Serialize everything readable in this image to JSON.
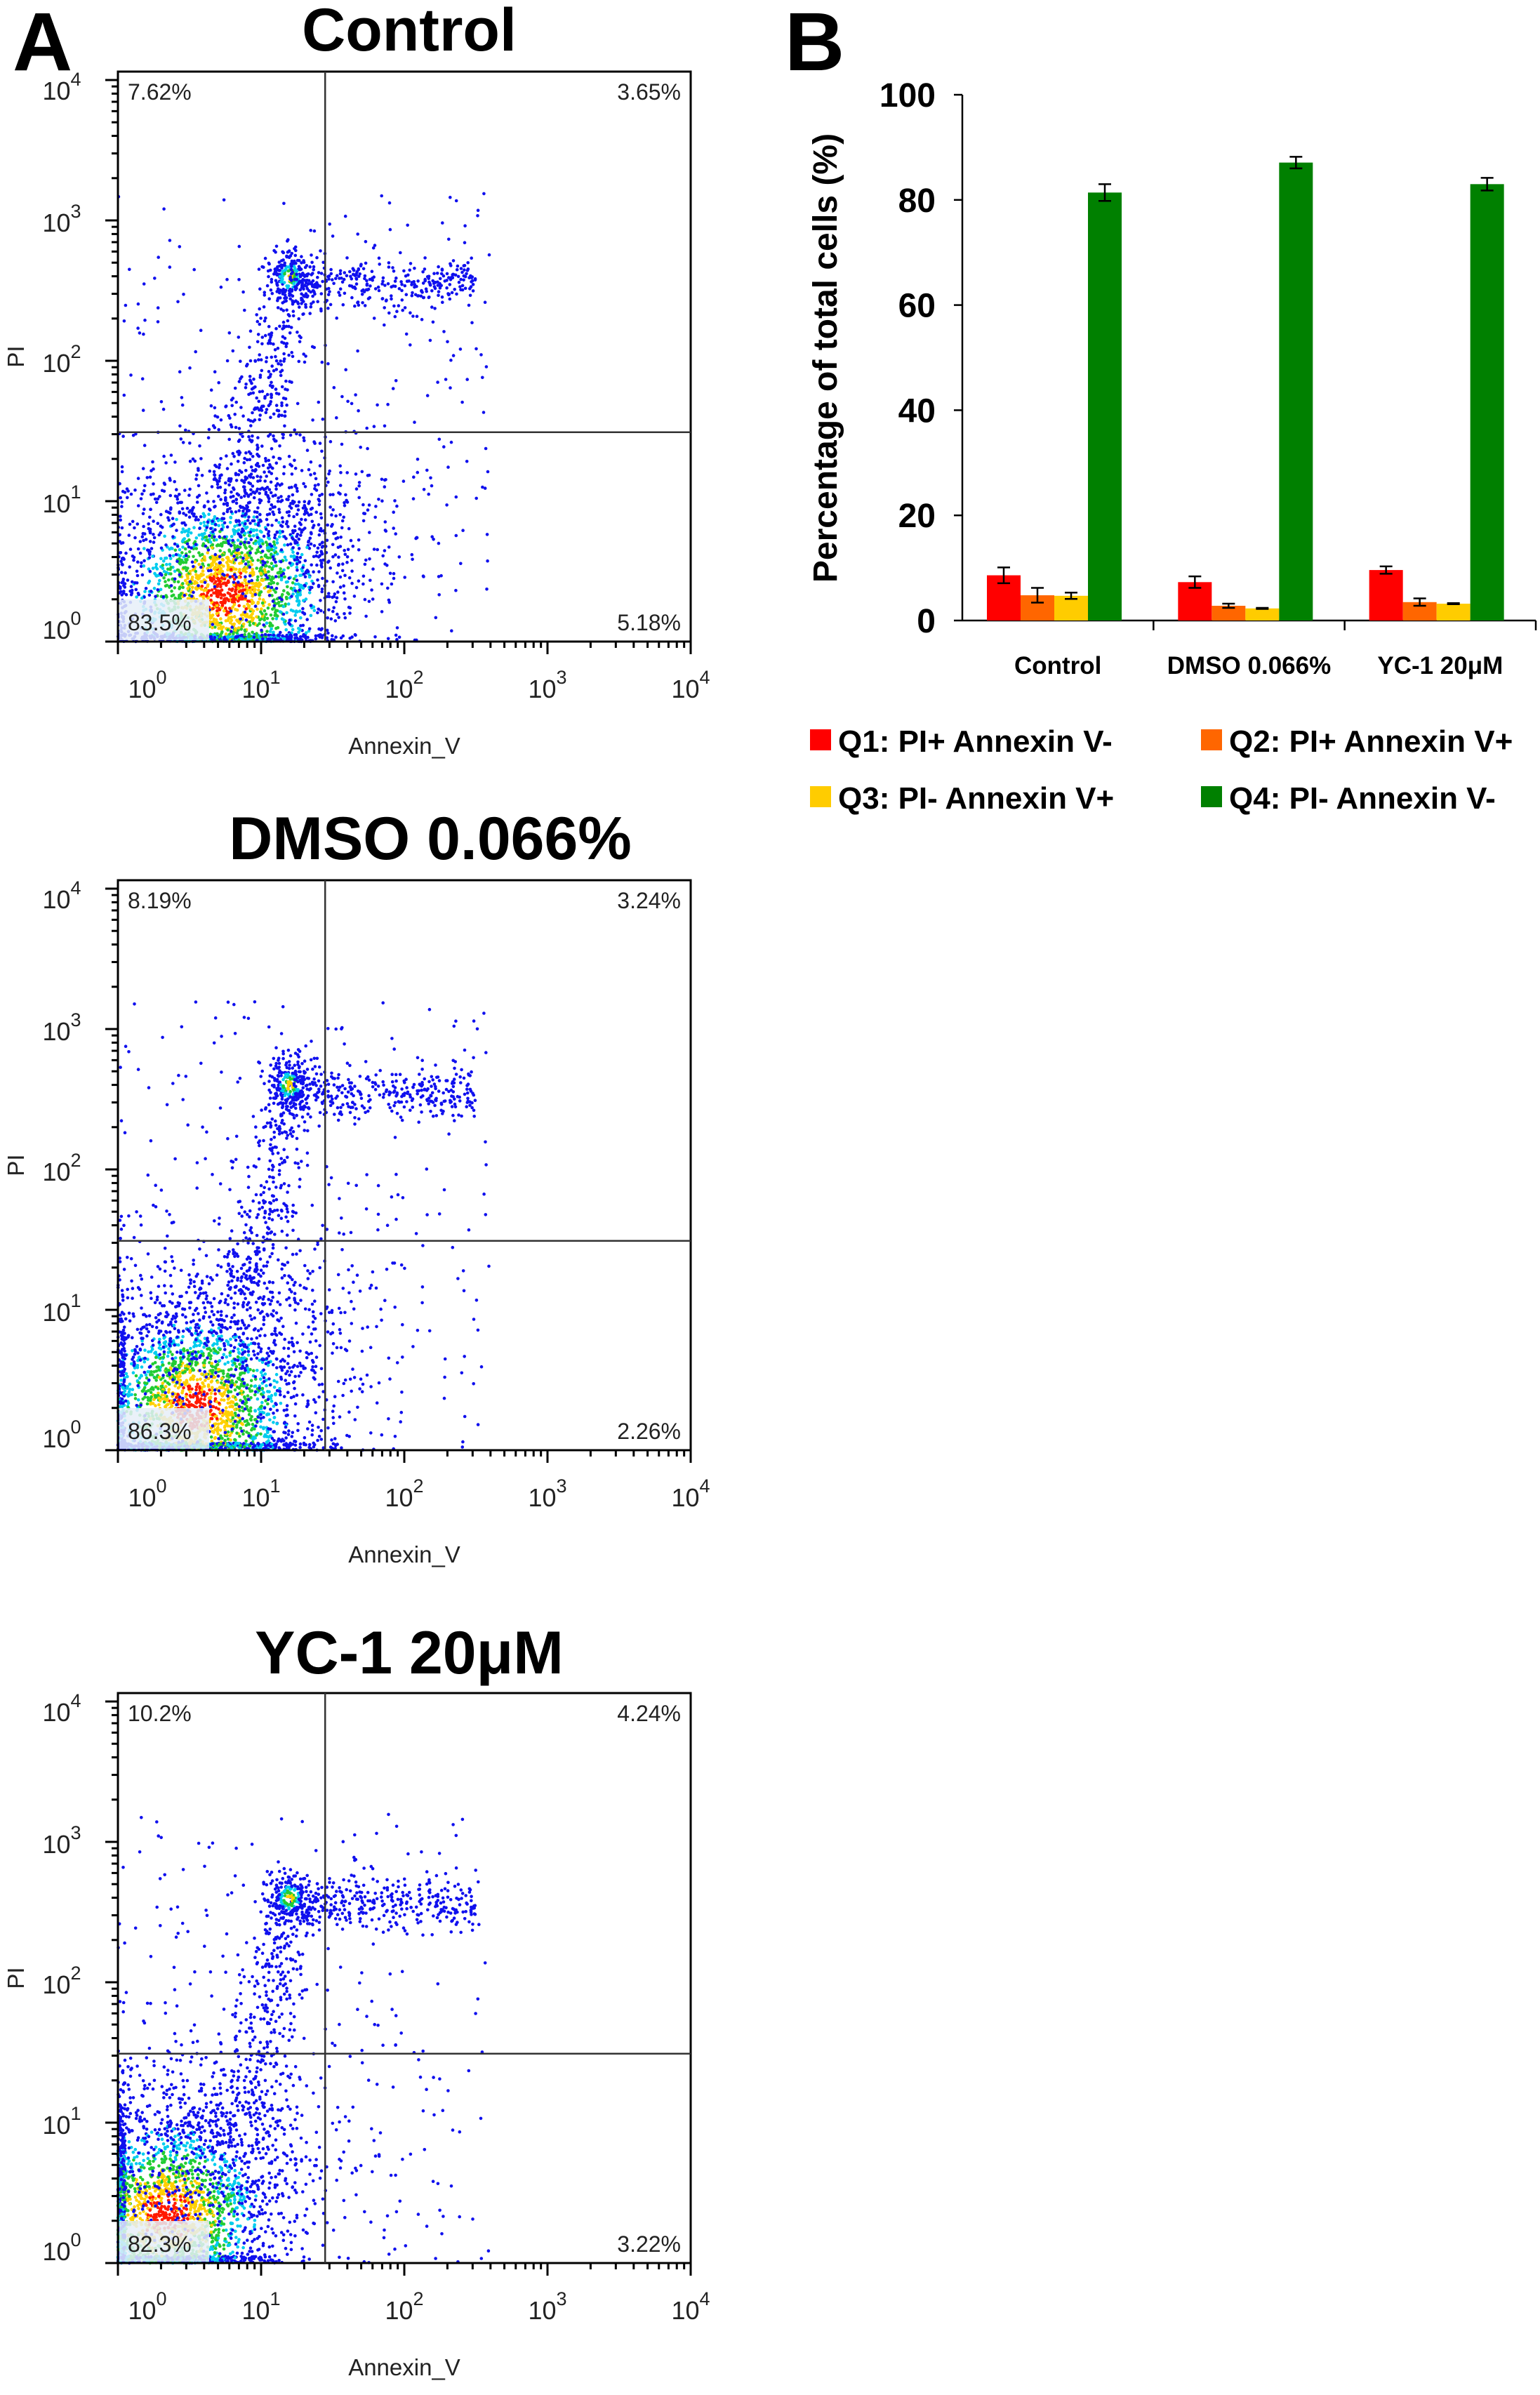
{
  "panel_labels": {
    "a": "A",
    "b": "B"
  },
  "chart_data": [
    {
      "type": "scatter",
      "title": "Control",
      "xlabel": "Annexin_V",
      "ylabel": "PI",
      "xscale": "log",
      "yscale": "log",
      "xlim": [
        1,
        10000
      ],
      "ylim": [
        1,
        10000
      ],
      "x_ticks": [
        {
          "base": "10",
          "exp": "0"
        },
        {
          "base": "10",
          "exp": "1"
        },
        {
          "base": "10",
          "exp": "2"
        },
        {
          "base": "10",
          "exp": "3"
        },
        {
          "base": "10",
          "exp": "4"
        }
      ],
      "y_ticks": [
        {
          "base": "10",
          "exp": "0"
        },
        {
          "base": "10",
          "exp": "1"
        },
        {
          "base": "10",
          "exp": "2"
        },
        {
          "base": "10",
          "exp": "3"
        },
        {
          "base": "10",
          "exp": "4"
        }
      ],
      "quadrant_gate": {
        "x": 28,
        "y": 31
      },
      "quadrants": {
        "upper_left": "7.62%",
        "upper_right": "3.65%",
        "lower_left": "83.5%",
        "lower_right": "5.18%"
      }
    },
    {
      "type": "scatter",
      "title": "DMSO 0.066%",
      "xlabel": "Annexin_V",
      "ylabel": "PI",
      "xscale": "log",
      "yscale": "log",
      "xlim": [
        1,
        10000
      ],
      "ylim": [
        1,
        10000
      ],
      "x_ticks": [
        {
          "base": "10",
          "exp": "0"
        },
        {
          "base": "10",
          "exp": "1"
        },
        {
          "base": "10",
          "exp": "2"
        },
        {
          "base": "10",
          "exp": "3"
        },
        {
          "base": "10",
          "exp": "4"
        }
      ],
      "y_ticks": [
        {
          "base": "10",
          "exp": "0"
        },
        {
          "base": "10",
          "exp": "1"
        },
        {
          "base": "10",
          "exp": "2"
        },
        {
          "base": "10",
          "exp": "3"
        },
        {
          "base": "10",
          "exp": "4"
        }
      ],
      "quadrant_gate": {
        "x": 28,
        "y": 31
      },
      "quadrants": {
        "upper_left": "8.19%",
        "upper_right": "3.24%",
        "lower_left": "86.3%",
        "lower_right": "2.26%"
      }
    },
    {
      "type": "scatter",
      "title": "YC-1 20μM",
      "xlabel": "Annexin_V",
      "ylabel": "PI",
      "xscale": "log",
      "yscale": "log",
      "xlim": [
        1,
        10000
      ],
      "ylim": [
        1,
        10000
      ],
      "x_ticks": [
        {
          "base": "10",
          "exp": "0"
        },
        {
          "base": "10",
          "exp": "1"
        },
        {
          "base": "10",
          "exp": "2"
        },
        {
          "base": "10",
          "exp": "3"
        },
        {
          "base": "10",
          "exp": "4"
        }
      ],
      "y_ticks": [
        {
          "base": "10",
          "exp": "0"
        },
        {
          "base": "10",
          "exp": "1"
        },
        {
          "base": "10",
          "exp": "2"
        },
        {
          "base": "10",
          "exp": "3"
        },
        {
          "base": "10",
          "exp": "4"
        }
      ],
      "quadrant_gate": {
        "x": 28,
        "y": 31
      },
      "quadrants": {
        "upper_left": "10.2%",
        "upper_right": "4.24%",
        "lower_left": "82.3%",
        "lower_right": "3.22%"
      }
    },
    {
      "type": "bar",
      "categories": [
        "Control",
        "DMSO 0.066%",
        "YC-1 20μM"
      ],
      "ylabel": "Percentage of total cells (%)",
      "ylim": [
        0,
        100
      ],
      "y_ticks": [
        0,
        20,
        40,
        60,
        80,
        100
      ],
      "legend": "bottom",
      "series": [
        {
          "name": "Q1: PI+ Annexin V-",
          "color": "#ff0000",
          "values": [
            8.6,
            7.3,
            9.6
          ],
          "errors": [
            1.5,
            1.1,
            0.7
          ]
        },
        {
          "name": "Q2: PI+ Annexin V+",
          "color": "#ff6600",
          "values": [
            4.8,
            2.8,
            3.5
          ],
          "errors": [
            1.4,
            0.4,
            0.7
          ]
        },
        {
          "name": "Q3: PI- Annexin V+",
          "color": "#ffcc00",
          "values": [
            4.7,
            2.3,
            3.2
          ],
          "errors": [
            0.6,
            0.1,
            0.1
          ]
        },
        {
          "name": "Q4: PI- Annexin V-",
          "color": "#008000",
          "values": [
            81.4,
            87.1,
            83.0
          ],
          "errors": [
            1.6,
            1.1,
            1.2
          ]
        }
      ]
    }
  ]
}
